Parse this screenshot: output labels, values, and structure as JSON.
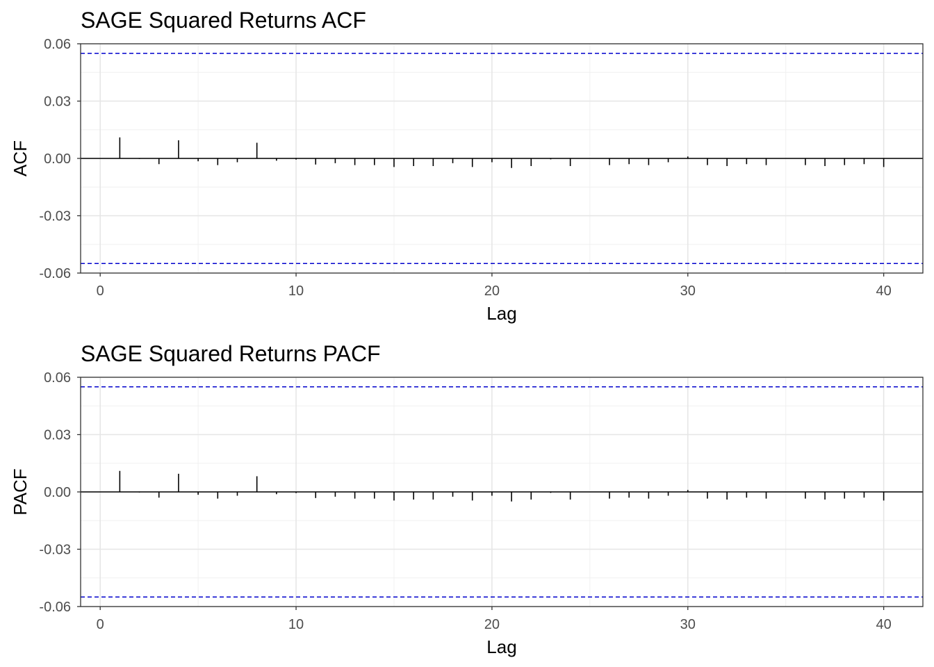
{
  "chart_data": [
    {
      "type": "bar",
      "subtype": "acf-stem",
      "title": "SAGE Squared Returns ACF",
      "xlabel": "Lag",
      "ylabel": "ACF",
      "xlim": [
        -1,
        42
      ],
      "ylim": [
        -0.06,
        0.06
      ],
      "xticks": [
        0,
        10,
        20,
        30,
        40
      ],
      "xtick_labels": [
        "0",
        "10",
        "20",
        "30",
        "40"
      ],
      "yticks": [
        -0.06,
        -0.03,
        0.0,
        0.03,
        0.06
      ],
      "ytick_labels": [
        "-0.06",
        "-0.03",
        "0.00",
        "0.03",
        "0.06"
      ],
      "grid": true,
      "confidence_bounds": [
        0.055,
        -0.055
      ],
      "bound_color": "#0000cc",
      "stem_color": "#000000",
      "lags": [
        1,
        2,
        3,
        4,
        5,
        6,
        7,
        8,
        9,
        10,
        11,
        12,
        13,
        14,
        15,
        16,
        17,
        18,
        19,
        20,
        21,
        22,
        23,
        24,
        25,
        26,
        27,
        28,
        29,
        30,
        31,
        32,
        33,
        34,
        35,
        36,
        37,
        38,
        39,
        40
      ],
      "values": [
        0.011,
        -0.0003,
        -0.003,
        0.0095,
        -0.0015,
        -0.0035,
        -0.002,
        0.0082,
        -0.0012,
        -0.0006,
        -0.0032,
        -0.0025,
        -0.0035,
        -0.0035,
        -0.0045,
        -0.004,
        -0.004,
        -0.0025,
        -0.0045,
        -0.002,
        -0.005,
        -0.004,
        -0.0005,
        -0.004,
        0.0,
        -0.0035,
        -0.003,
        -0.0035,
        -0.002,
        0.001,
        -0.0035,
        -0.004,
        -0.003,
        -0.0035,
        0.0,
        -0.0035,
        -0.004,
        -0.0035,
        -0.003,
        -0.0045
      ]
    },
    {
      "type": "bar",
      "subtype": "acf-stem",
      "title": "SAGE Squared Returns PACF",
      "xlabel": "Lag",
      "ylabel": "PACF",
      "xlim": [
        -1,
        42
      ],
      "ylim": [
        -0.06,
        0.06
      ],
      "xticks": [
        0,
        10,
        20,
        30,
        40
      ],
      "xtick_labels": [
        "0",
        "10",
        "20",
        "30",
        "40"
      ],
      "yticks": [
        -0.06,
        -0.03,
        0.0,
        0.03,
        0.06
      ],
      "ytick_labels": [
        "-0.06",
        "-0.03",
        "0.00",
        "0.03",
        "0.06"
      ],
      "grid": true,
      "confidence_bounds": [
        0.055,
        -0.055
      ],
      "bound_color": "#0000cc",
      "stem_color": "#000000",
      "lags": [
        1,
        2,
        3,
        4,
        5,
        6,
        7,
        8,
        9,
        10,
        11,
        12,
        13,
        14,
        15,
        16,
        17,
        18,
        19,
        20,
        21,
        22,
        23,
        24,
        25,
        26,
        27,
        28,
        29,
        30,
        31,
        32,
        33,
        34,
        35,
        36,
        37,
        38,
        39,
        40
      ],
      "values": [
        0.011,
        -0.0003,
        -0.003,
        0.0095,
        -0.0015,
        -0.0035,
        -0.002,
        0.0082,
        -0.0012,
        -0.0006,
        -0.0032,
        -0.0025,
        -0.0035,
        -0.0035,
        -0.0045,
        -0.004,
        -0.004,
        -0.0025,
        -0.0045,
        -0.002,
        -0.005,
        -0.004,
        -0.0005,
        -0.004,
        0.0,
        -0.0035,
        -0.003,
        -0.0035,
        -0.002,
        0.001,
        -0.0035,
        -0.004,
        -0.003,
        -0.0035,
        0.0,
        -0.0035,
        -0.004,
        -0.0035,
        -0.003,
        -0.0045
      ]
    }
  ]
}
